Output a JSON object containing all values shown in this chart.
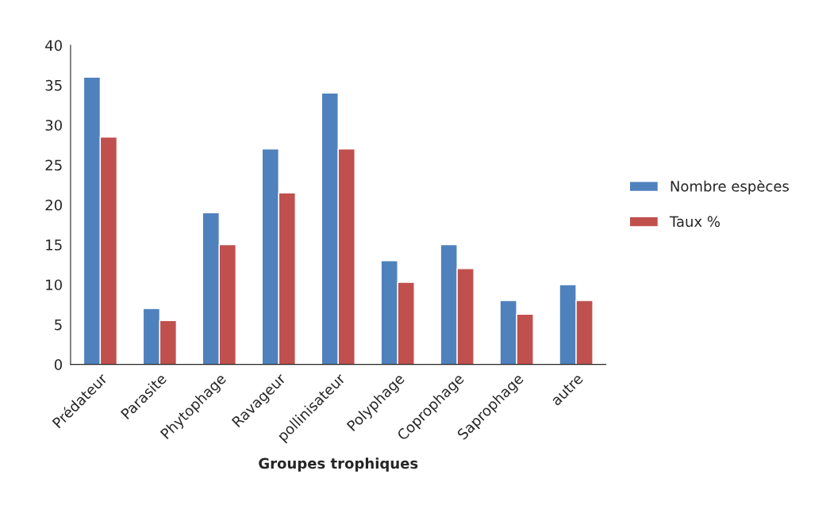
{
  "chart_data": {
    "type": "bar",
    "xlabel": "Groupes trophiques",
    "categories": [
      "Prédateur",
      "Parasite",
      "Phytophage",
      "Ravageur",
      "pollinisateur",
      "Polyphage",
      "Coprophage",
      "Saprophage",
      "autre"
    ],
    "series": [
      {
        "name": "Nombre espèces",
        "color": "#4f81bd",
        "values": [
          36,
          7,
          19,
          27,
          34,
          13,
          15,
          8,
          10
        ]
      },
      {
        "name": "Taux %",
        "color": "#c0504d",
        "values": [
          28.5,
          5.5,
          15,
          21.5,
          27,
          10.3,
          12,
          6.3,
          8
        ]
      }
    ],
    "ylim": [
      0,
      40
    ],
    "yticks": [
      0,
      5,
      10,
      15,
      20,
      25,
      30,
      35,
      40
    ],
    "grid": false,
    "legend": "right"
  }
}
